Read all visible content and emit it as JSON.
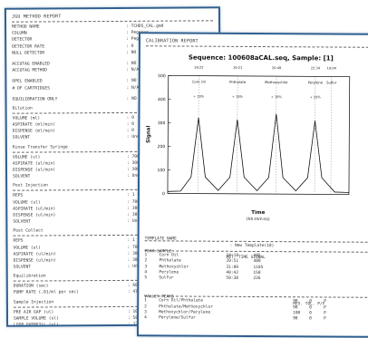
{
  "method_report": {
    "title": "JGU METHOD REPORT",
    "fields_a": [
      {
        "label": "METHOD NAME",
        "value": ": TCHDS_CAL.gmd"
      },
      {
        "label": "COLUMN",
        "value": ": Pegasus"
      },
      {
        "label": "DETECTOR",
        "value": ": Pegasus DA"
      },
      {
        "label": "DETECTOR RATE",
        "value": ": 8"
      },
      {
        "label": "NULL DETECTOR",
        "value": ": NO"
      }
    ],
    "fields_b": [
      {
        "label": "ACCUTAG ENABLED",
        "value": ": NO"
      },
      {
        "label": "ACCUTAG METHOD",
        "value": ": N/A"
      }
    ],
    "fields_c": [
      {
        "label": "OPEL ENABLED",
        "value": ": NO"
      },
      {
        "label": "# OF CARTRIDGES",
        "value": ": N/A"
      }
    ],
    "fields_d": [
      {
        "label": "EQUILIBRATION ONLY",
        "value": ": NO"
      }
    ],
    "sections": [
      {
        "title": "Dilution",
        "rows": [
          {
            "label": "VOLUME (ml)",
            "value": ": 0"
          },
          {
            "label": "ASPIRATE (ml/min)",
            "value": ": 0"
          },
          {
            "label": "DISPENSE (ml/min)",
            "value": ": 0"
          },
          {
            "label": "SOLVENT",
            "value": ": Undefined"
          }
        ]
      },
      {
        "title": "Rinse Transfer Syringe",
        "rows": [
          {
            "label": "VOLUME (ul)",
            "value": ": 7000"
          },
          {
            "label": "ASPIRATE (ul/min)",
            "value": ": 30000"
          },
          {
            "label": "DISPENSE (ul/min)",
            "value": ": 30000"
          },
          {
            "label": "SOLVENT",
            "value": ": Undefined"
          }
        ]
      },
      {
        "title": "Post Injection",
        "rows": [
          {
            "label": "REPS",
            "value": ": 1"
          },
          {
            "label": "VOLUME (ul)",
            "value": ": 7000"
          },
          {
            "label": "ASPIRATE (ul/min)",
            "value": ": 30000"
          },
          {
            "label": "DISPENSE (ul/min)",
            "value": ": 30000"
          },
          {
            "label": "SOLVENT",
            "value": ": Undefined"
          }
        ]
      },
      {
        "title": "Post Collect",
        "rows": [
          {
            "label": "REPS",
            "value": ": 1"
          },
          {
            "label": "VOLUME (ul)",
            "value": ": 7000"
          },
          {
            "label": "ASPIRATE (ul/min)",
            "value": ": 30000"
          },
          {
            "label": "DISPENSE (ul/min)",
            "value": ": 30000"
          },
          {
            "label": "SOLVENT",
            "value": ": Undefined"
          }
        ]
      },
      {
        "title": "Equilibration",
        "rows": [
          {
            "label": "DURATION (sec)",
            "value": ": 60"
          },
          {
            "label": "PUMP RATE (.01/ml per sec)",
            "value": ": 470"
          }
        ]
      },
      {
        "title": "Sample Injection",
        "rows": [
          {
            "label": "PRE AIR GAP (ul)",
            "value": ": 100"
          },
          {
            "label": "SAMPLE VOLUME (ul)",
            "value": ": 5000"
          },
          {
            "label": "LOOP OVERFILL (ul)",
            "value": ": 120"
          }
        ]
      }
    ]
  },
  "calibration_report": {
    "title": "CALIBRATION REPORT",
    "chart_data": {
      "type": "line",
      "title": "Sequence: 100608aCAL.seq, Sample: [1]",
      "xlabel": "Time",
      "xlabel_unit": "(hh:mm:ss)",
      "ylabel": "Signal",
      "ylim": [
        0,
        500
      ],
      "xlim": [
        0,
        14
      ],
      "yticks": [
        0,
        100,
        200,
        300,
        400,
        500
      ],
      "grid": false,
      "x": [
        0,
        1.0,
        1.8,
        2.35,
        2.9,
        3.9,
        4.8,
        5.35,
        5.9,
        6.9,
        7.8,
        8.35,
        8.9,
        9.9,
        10.8,
        11.35,
        11.9,
        12.9,
        14
      ],
      "y": [
        8,
        10,
        70,
        322,
        70,
        14,
        70,
        315,
        70,
        14,
        70,
        340,
        70,
        14,
        70,
        312,
        70,
        10,
        8
      ],
      "peak_labels": [
        {
          "name": "Corn Oil",
          "x": 2.35
        },
        {
          "name": "Phthalate",
          "x": 5.35
        },
        {
          "name": "Methoxychlor",
          "x": 8.35
        },
        {
          "name": "Perylene",
          "x": 11.35
        },
        {
          "name": "Sulfur",
          "x": 12.6
        }
      ],
      "marker_labels": [
        "18:22",
        "19:21",
        "20:48",
        "22:34",
        "19:04"
      ],
      "window_labels": [
        "+ 18%",
        "+ 18%",
        "+ 18%",
        "+ 18%"
      ]
    },
    "template_name_label": "TEMPLATE NAME",
    "template_name_value": ": New Template(10)",
    "peak_table_header": [
      "PEAK SAMPLE",
      "RET. TIME SIGNAL"
    ],
    "peaks": [
      {
        "n": "1",
        "name": "Corn Oil",
        "rt": "18:18",
        "sig": "485"
      },
      {
        "n": "2",
        "name": "Phthalate",
        "rt": "20:51",
        "sig": "480"
      },
      {
        "n": "3",
        "name": "Methoxychlor",
        "rt": "31:09",
        "sig": "1105"
      },
      {
        "n": "4",
        "name": "Perylene",
        "rt": "40:42",
        "sig": "158"
      },
      {
        "n": "5",
        "name": "Sulfur",
        "rt": "50:38",
        "sig": "226"
      }
    ],
    "valley_header": [
      "VALLEY PEAKS",
      "RES. TOL. P/F"
    ],
    "valleys": [
      {
        "n": "1",
        "name": "Corn Oil/Phthalate",
        "res": "98",
        "tol": "0",
        "pf": "P"
      },
      {
        "n": "2",
        "name": "Phthalate/Methoxychlor",
        "res": "98",
        "tol": "0",
        "pf": "P"
      },
      {
        "n": "3",
        "name": "Methoxychlor/Perylene",
        "res": "100",
        "tol": "0",
        "pf": "P"
      },
      {
        "n": "4",
        "name": "Perylene/Sulfur",
        "res": "98",
        "tol": "0",
        "pf": "P"
      }
    ]
  }
}
